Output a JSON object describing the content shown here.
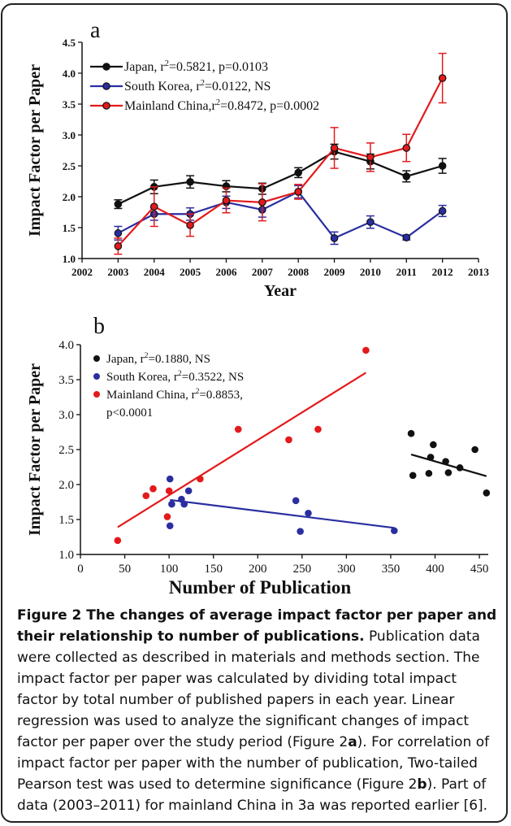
{
  "chart_data": [
    {
      "type": "line",
      "panel_label": "a",
      "xlabel": "Year",
      "ylabel": "Impact Factor per Paper",
      "xlim": [
        2002,
        2013
      ],
      "ylim": [
        1.0,
        4.5
      ],
      "x_ticks": [
        2002,
        2003,
        2004,
        2005,
        2006,
        2007,
        2008,
        2009,
        2010,
        2011,
        2012,
        2013
      ],
      "y_ticks": [
        1.0,
        1.5,
        2.0,
        2.5,
        3.0,
        3.5,
        4.0,
        4.5
      ],
      "grid": false,
      "legend_position": "top-left",
      "x": [
        2003,
        2004,
        2005,
        2006,
        2007,
        2008,
        2009,
        2010,
        2011,
        2012
      ],
      "series": [
        {
          "name": "Japan",
          "legend_text": "Japan, r²=0.5821, p=0.0103",
          "color": "#111111",
          "values": [
            1.88,
            2.16,
            2.24,
            2.17,
            2.13,
            2.39,
            2.73,
            2.57,
            2.33,
            2.5
          ],
          "errors": [
            0.07,
            0.11,
            0.1,
            0.09,
            0.09,
            0.08,
            0.12,
            0.12,
            0.09,
            0.12
          ]
        },
        {
          "name": "South Korea",
          "legend_text": "South Korea, r²=0.0122, NS",
          "color": "#2a2ea0",
          "values": [
            1.41,
            1.72,
            1.72,
            1.91,
            1.79,
            2.08,
            1.33,
            1.59,
            1.34,
            1.77
          ],
          "errors": [
            0.11,
            0.1,
            0.1,
            0.1,
            0.12,
            0.1,
            0.1,
            0.1,
            0.04,
            0.09
          ]
        },
        {
          "name": "Mainland China",
          "legend_text": "Mainland China,r²=0.8472, p=0.0002",
          "color": "#e31a1c",
          "values": [
            1.2,
            1.84,
            1.54,
            1.94,
            1.91,
            2.08,
            2.79,
            2.64,
            2.79,
            3.92
          ],
          "errors": [
            0.13,
            0.32,
            0.18,
            0.2,
            0.3,
            0.12,
            0.33,
            0.23,
            0.22,
            0.4
          ]
        }
      ]
    },
    {
      "type": "scatter",
      "panel_label": "b",
      "xlabel": "Number of Publication",
      "ylabel": "Impact Factor per Paper",
      "xlim": [
        0,
        460
      ],
      "ylim": [
        1.0,
        4.0
      ],
      "x_ticks": [
        0,
        50,
        100,
        150,
        200,
        250,
        300,
        350,
        400,
        450
      ],
      "y_ticks": [
        1.0,
        1.5,
        2.0,
        2.5,
        3.0,
        3.5,
        4.0
      ],
      "grid": false,
      "legend_position": "top-left",
      "series": [
        {
          "name": "Japan",
          "legend_lines": [
            "Japan, r²=0.1880, NS"
          ],
          "color": "#111111",
          "points": [
            [
              373,
              2.73
            ],
            [
              375,
              2.13
            ],
            [
              393,
              2.16
            ],
            [
              395,
              2.39
            ],
            [
              398,
              2.57
            ],
            [
              412,
              2.33
            ],
            [
              415,
              2.17
            ],
            [
              428,
              2.24
            ],
            [
              445,
              2.5
            ],
            [
              458,
              1.88
            ]
          ],
          "fit": [
            [
              373,
              2.43
            ],
            [
              458,
              2.12
            ]
          ]
        },
        {
          "name": "South Korea",
          "legend_lines": [
            "South Korea, r²=0.3522, NS"
          ],
          "color": "#2a2ea0",
          "points": [
            [
              101,
              2.08
            ],
            [
              101,
              1.41
            ],
            [
              103,
              1.72
            ],
            [
              114,
              1.79
            ],
            [
              117,
              1.72
            ],
            [
              122,
              1.91
            ],
            [
              243,
              1.77
            ],
            [
              248,
              1.33
            ],
            [
              257,
              1.59
            ],
            [
              354,
              1.34
            ]
          ],
          "fit": [
            [
              101,
              1.78
            ],
            [
              354,
              1.38
            ]
          ]
        },
        {
          "name": "Mainland China",
          "legend_lines": [
            "Mainland China, r²=0.8853,",
            "p<0.0001"
          ],
          "color": "#e31a1c",
          "points": [
            [
              42,
              1.2
            ],
            [
              74,
              1.84
            ],
            [
              82,
              1.94
            ],
            [
              98,
              1.54
            ],
            [
              100,
              1.91
            ],
            [
              135,
              2.08
            ],
            [
              178,
              2.79
            ],
            [
              235,
              2.64
            ],
            [
              268,
              2.79
            ],
            [
              322,
              3.92
            ]
          ],
          "fit": [
            [
              42,
              1.39
            ],
            [
              322,
              3.6
            ]
          ]
        }
      ]
    }
  ],
  "caption": {
    "title": "Figure 2 The changes of average impact factor per paper and their relationship to number of publications.",
    "body_before_a": " Publication data were collected as described in materials and methods section. The impact factor per paper was calculated by dividing total impact factor by total number of published papers in each year. Linear regression was used to analyze the significant changes of impact factor per paper over the study period (Figure 2",
    "ref_a": "a",
    "body_between": "). For correlation of impact factor per paper with the number of publication, Two-tailed Pearson test was used to determine significance (Figure 2",
    "ref_b": "b",
    "body_after_b": "). Part of data (2003–2011) for mainland China in 3a was reported earlier [6]."
  }
}
